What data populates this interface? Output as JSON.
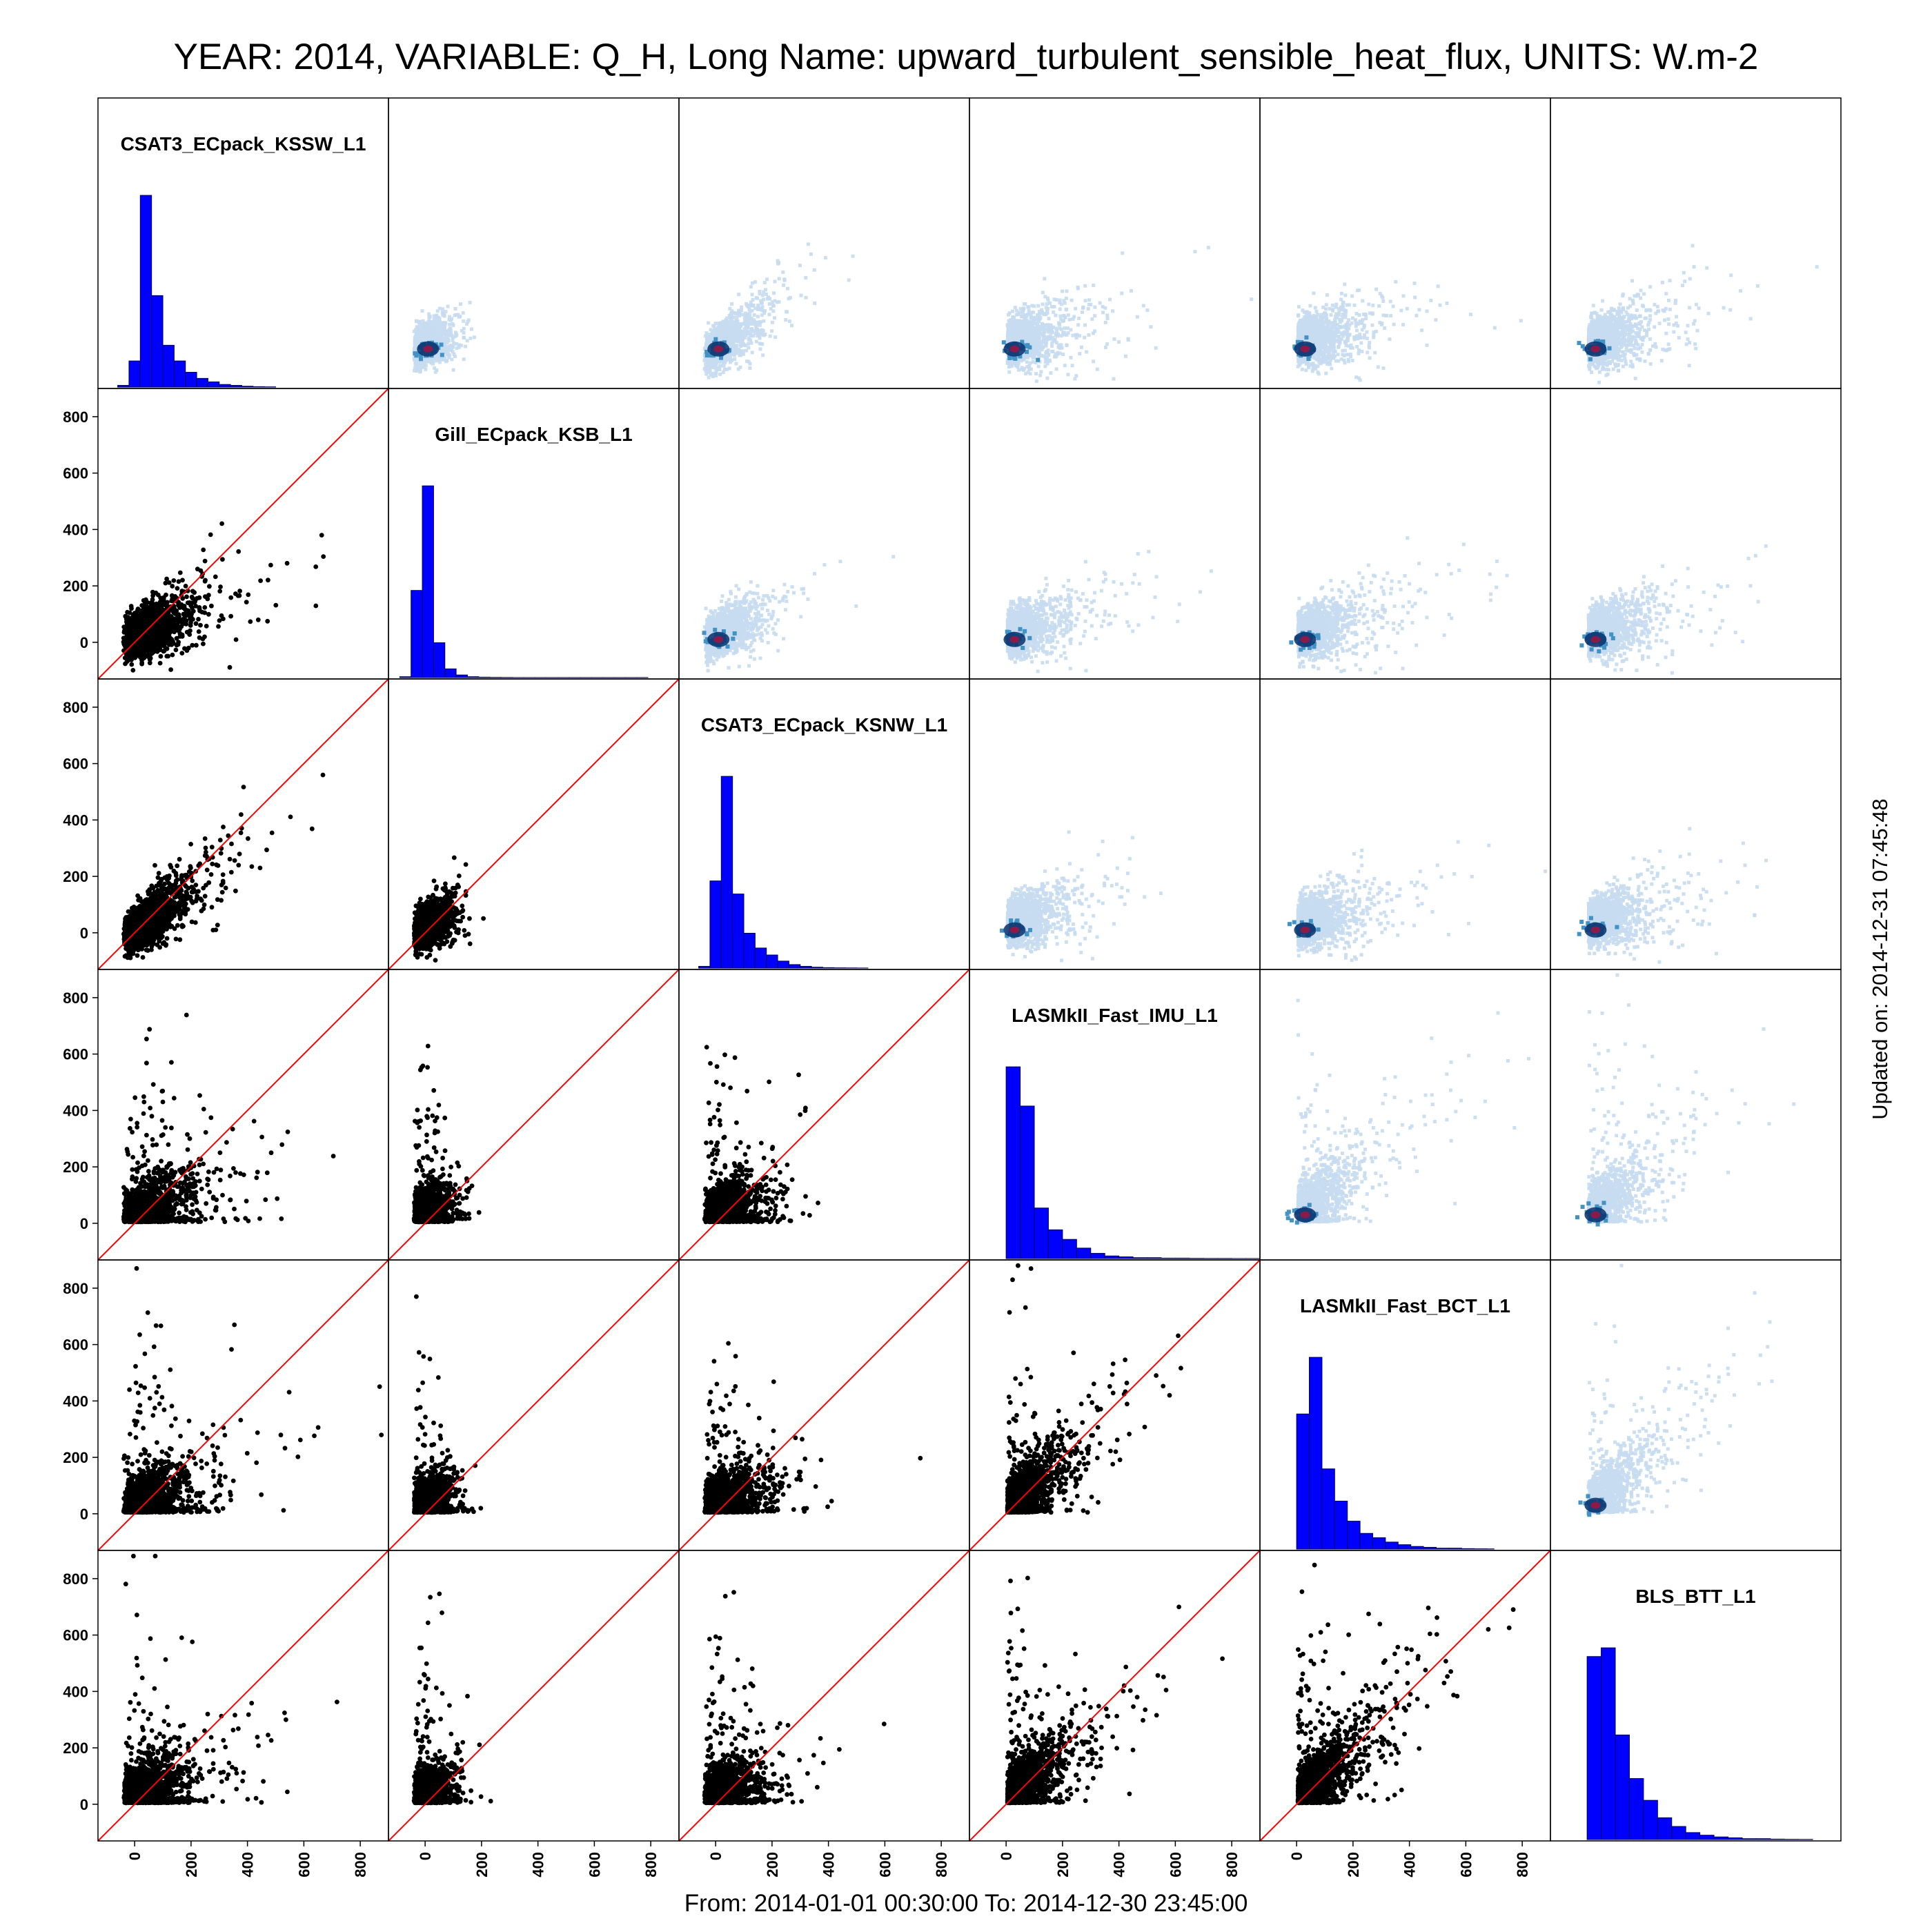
{
  "title": "YEAR: 2014, VARIABLE: Q_H, Long Name: upward_turbulent_sensible_heat_flux, UNITS: W.m-2",
  "footer": "From: 2014-01-01 00:30:00 To: 2014-12-30 23:45:00",
  "updated": "Updated on: 2014-12-31 07:45:48",
  "colors": {
    "histogram_fill": "#0000ff",
    "histogram_edge": "#000055",
    "scatter_points": "#000000",
    "identity_line": "#ff0000",
    "density_low": "#c6dbef",
    "density_mid": "#4292c6",
    "density_high": "#08306b",
    "density_core": "#8b1a4a"
  },
  "chart_data": {
    "type": "scatter",
    "subtype": "scatter-matrix",
    "variables": [
      "CSAT3_ECpack_KSSW_L1",
      "Gill_ECpack_KSB_L1",
      "CSAT3_ECpack_KSNW_L1",
      "LASMkII_Fast_IMU_L1",
      "LASMkII_Fast_BCT_L1",
      "BLS_BTT_L1"
    ],
    "axis_range": [
      -130,
      900
    ],
    "ticks": [
      0,
      200,
      400,
      600,
      800
    ],
    "diagonal": "histogram",
    "lower_triangle": "scatter with 1:1 line",
    "upper_triangle": "hexbin density",
    "histograms": [
      {
        "variable": "CSAT3_ECpack_KSSW_L1",
        "bin_edges": [
          -60,
          -20,
          20,
          60,
          100,
          140,
          180,
          220,
          260,
          300,
          340,
          380,
          420,
          460,
          500
        ],
        "counts": [
          2,
          30,
          220,
          105,
          48,
          30,
          17,
          10,
          6,
          3,
          2,
          1,
          0.5,
          0.3
        ]
      },
      {
        "variable": "Gill_ECpack_KSB_L1",
        "bin_edges": [
          -90,
          -50,
          -10,
          30,
          70,
          110,
          150,
          190,
          230,
          270,
          310,
          350,
          390,
          430,
          470,
          510,
          550,
          590,
          630,
          670,
          710,
          750,
          790
        ],
        "counts": [
          1,
          100,
          220,
          40,
          10,
          3,
          1,
          0.5,
          0.3,
          0.2,
          0.1,
          0.1,
          0.1,
          0.1,
          0.1,
          0.1,
          0.1,
          0.1,
          0.1,
          0.1,
          0.1,
          0.1
        ]
      },
      {
        "variable": "CSAT3_ECpack_KSNW_L1",
        "bin_edges": [
          -60,
          -20,
          20,
          60,
          100,
          140,
          180,
          220,
          260,
          300,
          340,
          380,
          420,
          460,
          500,
          540
        ],
        "counts": [
          2,
          100,
          220,
          85,
          40,
          23,
          15,
          8,
          4,
          2,
          1,
          0.5,
          0.3,
          0.2,
          0.1
        ]
      },
      {
        "variable": "LASMkII_Fast_IMU_L1",
        "bin_edges": [
          0,
          50,
          100,
          150,
          200,
          250,
          300,
          350,
          400,
          450,
          500,
          550,
          600,
          650,
          700,
          750,
          800,
          850,
          900
        ],
        "counts": [
          220,
          175,
          58,
          33,
          22,
          12,
          6,
          3,
          2,
          1,
          1,
          0.5,
          0.5,
          0.3,
          0.2,
          0.2,
          0.1,
          0.1
        ]
      },
      {
        "variable": "LASMkII_Fast_BCT_L1",
        "bin_edges": [
          0,
          45,
          90,
          135,
          180,
          225,
          270,
          315,
          360,
          405,
          450,
          495,
          540,
          585,
          630,
          675,
          700
        ],
        "counts": [
          155,
          220,
          92,
          55,
          32,
          18,
          13,
          8,
          5,
          3,
          2,
          1,
          1,
          0.5,
          0.3,
          0.2
        ]
      },
      {
        "variable": "BLS_BTT_L1",
        "bin_edges": [
          0,
          50,
          100,
          150,
          200,
          250,
          300,
          350,
          400,
          450,
          500,
          550,
          600,
          650,
          700,
          750,
          800
        ],
        "counts": [
          210,
          220,
          120,
          70,
          45,
          25,
          15,
          8,
          5,
          3,
          2,
          1,
          1,
          0.5,
          0.3,
          0.2
        ]
      }
    ]
  }
}
